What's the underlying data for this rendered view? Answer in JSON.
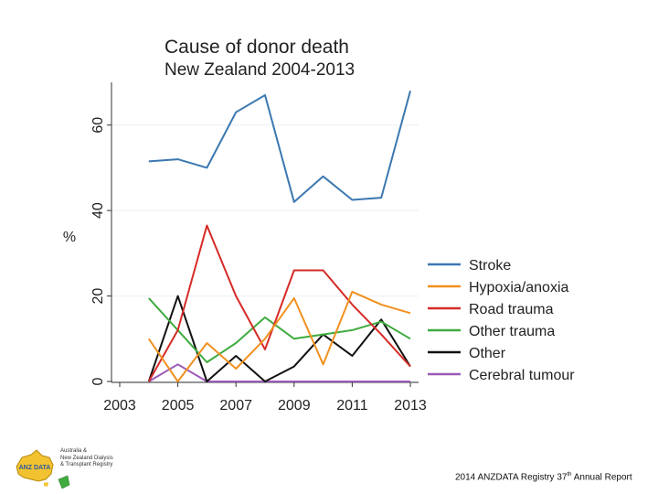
{
  "chart_data": {
    "type": "line",
    "title": "Cause of donor death",
    "subtitle": "New Zealand 2004-2013",
    "xlabel": "",
    "ylabel": "%",
    "xlim": [
      2003,
      2013
    ],
    "ylim": [
      0,
      70
    ],
    "xticks": [
      2003,
      2005,
      2007,
      2009,
      2011,
      2013
    ],
    "yticks": [
      0,
      20,
      40,
      60
    ],
    "grid": true,
    "legend_position": "right",
    "x": [
      2004,
      2005,
      2006,
      2007,
      2008,
      2009,
      2010,
      2011,
      2012,
      2013
    ],
    "series": [
      {
        "name": "Stroke",
        "color": "#3b78b0",
        "values": [
          51.5,
          52,
          50,
          63,
          67,
          42,
          48,
          42.5,
          43,
          68
        ]
      },
      {
        "name": "Hypoxia/anoxia",
        "color": "#f0911f",
        "values": [
          10,
          0,
          9,
          3,
          10,
          19.5,
          4,
          21,
          18,
          16
        ]
      },
      {
        "name": "Road trauma",
        "color": "#d62b27",
        "values": [
          0,
          12,
          36.5,
          20,
          7.5,
          26,
          26,
          18,
          11,
          3.5
        ]
      },
      {
        "name": "Other trauma",
        "color": "#3fab3f",
        "values": [
          19.5,
          12,
          4.5,
          9,
          15,
          10,
          11,
          12,
          14,
          10
        ]
      },
      {
        "name": "Other",
        "color": "#111111",
        "values": [
          0,
          20,
          0,
          6,
          0,
          3.5,
          11,
          6,
          14.5,
          3.5
        ]
      },
      {
        "name": "Cerebral tumour",
        "color": "#9b59b6",
        "values": [
          0,
          4,
          0,
          0,
          0,
          0,
          0,
          0,
          0,
          0
        ]
      }
    ]
  },
  "logo": {
    "badge_text": "ANZ DATA",
    "lines": [
      "Australia &",
      "New Zealand Dialysis",
      "& Transplant Registry"
    ]
  },
  "footer": {
    "prefix": "2014 ANZDATA Registry 37",
    "sup": "th",
    "suffix": " Annual Report"
  }
}
